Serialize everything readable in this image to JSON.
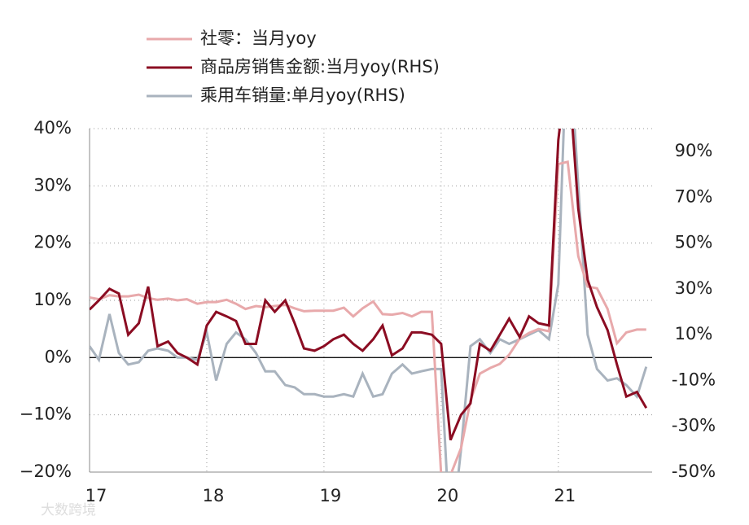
{
  "chart_data": {
    "type": "line",
    "watermark": "大数跨境",
    "x": [
      17,
      17.08,
      17.17,
      17.25,
      17.33,
      17.42,
      17.5,
      17.58,
      17.67,
      17.75,
      17.83,
      17.92,
      18,
      18.08,
      18.17,
      18.25,
      18.33,
      18.42,
      18.5,
      18.58,
      18.67,
      18.75,
      18.83,
      18.92,
      19,
      19.08,
      19.17,
      19.25,
      19.33,
      19.42,
      19.5,
      19.58,
      19.67,
      19.75,
      19.83,
      19.92,
      20,
      20.08,
      20.17,
      20.25,
      20.33,
      20.42,
      20.5,
      20.58,
      20.67,
      20.75,
      20.83,
      20.92,
      21,
      21.08,
      21.17,
      21.25,
      21.33,
      21.42,
      21.5,
      21.58,
      21.67,
      21.75
    ],
    "series": [
      {
        "name": "社零：当月yoy",
        "color": "#e8a9ab",
        "axis": "y",
        "values": [
          10.5,
          10.2,
          10.9,
          10.7,
          10.7,
          11,
          10.4,
          10.1,
          10.3,
          10,
          10.2,
          9.4,
          9.7,
          9.7,
          10.1,
          9.4,
          8.5,
          9,
          8.8,
          9,
          9.2,
          8.6,
          8.1,
          8.2,
          8.2,
          8.2,
          8.7,
          7.2,
          8.6,
          9.8,
          7.6,
          7.5,
          7.8,
          7.2,
          8,
          8,
          -20.5,
          -20.5,
          -15.8,
          -7.5,
          -2.8,
          -1.8,
          -1.1,
          0.5,
          3.3,
          4.3,
          5,
          4.6,
          33.8,
          34.2,
          17.7,
          12.4,
          12.1,
          8.5,
          2.5,
          4.4,
          4.9,
          4.9
        ]
      },
      {
        "name": "商品房销售金额:当月yoy(RHS)",
        "color": "#8b0c22",
        "axis": "y2",
        "values": [
          21,
          25,
          30,
          28,
          10,
          15,
          31,
          5,
          7,
          2,
          0,
          -3,
          14,
          20,
          18,
          16,
          6,
          6,
          25,
          20,
          25,
          15,
          4,
          3,
          5,
          8,
          10,
          6,
          3,
          8,
          14,
          1,
          4,
          11,
          11,
          10,
          6,
          -36,
          -25,
          -20,
          6,
          3,
          10,
          17,
          9,
          18,
          15,
          14,
          95,
          130,
          65,
          34,
          22,
          12,
          -3,
          -17,
          -15,
          -22
        ]
      },
      {
        "name": "乘用车销量:单月yoy(RHS)",
        "color": "#a9b3be",
        "axis": "y2",
        "values": [
          5,
          -1,
          19,
          2,
          -3,
          -2,
          3,
          4,
          3,
          0,
          0,
          -1,
          11,
          -10,
          6,
          11,
          8,
          2,
          -6,
          -6,
          -12,
          -13,
          -16,
          -16,
          -17,
          -17,
          -16,
          -17,
          -7,
          -17,
          -16,
          -7,
          -3,
          -7,
          -6,
          -5,
          -5,
          -82,
          -40,
          5,
          8,
          2,
          8,
          6,
          8,
          10,
          12,
          8,
          32,
          150,
          75,
          10,
          -5,
          -10,
          -9,
          -12,
          -17,
          -4
        ]
      }
    ],
    "xlim": [
      17,
      21.8
    ],
    "xticks": [
      17,
      18,
      19,
      20,
      21
    ],
    "ylim": [
      -20,
      40
    ],
    "yticks": [
      {
        "value": -20,
        "label": "−20%"
      },
      {
        "value": -10,
        "label": "−10%"
      },
      {
        "value": 0,
        "label": "0%"
      },
      {
        "value": 10,
        "label": "10%"
      },
      {
        "value": 20,
        "label": "20%"
      },
      {
        "value": 30,
        "label": "30%"
      },
      {
        "value": 40,
        "label": "40%"
      }
    ],
    "y2lim": [
      -50,
      100
    ],
    "y2ticks": [
      {
        "value": -50,
        "label": "-50%"
      },
      {
        "value": -30,
        "label": "-30%"
      },
      {
        "value": -10,
        "label": "-10%"
      },
      {
        "value": 10,
        "label": "10%"
      },
      {
        "value": 30,
        "label": "30%"
      },
      {
        "value": 50,
        "label": "50%"
      },
      {
        "value": 70,
        "label": "70%"
      },
      {
        "value": 90,
        "label": "90%"
      }
    ],
    "grid": true,
    "legend": "top"
  }
}
